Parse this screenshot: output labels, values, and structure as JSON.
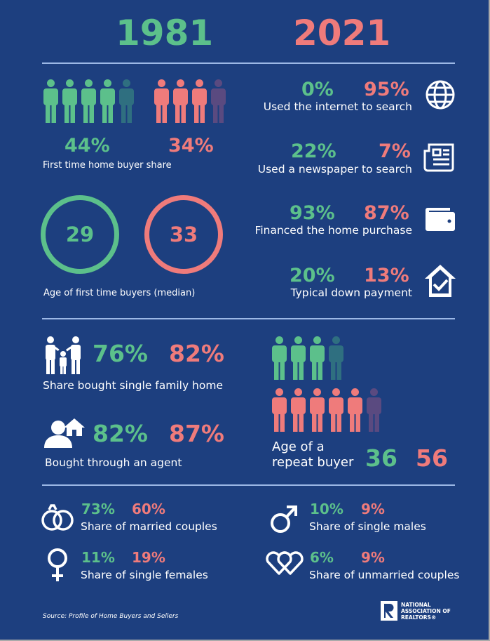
{
  "years": {
    "left": "1981",
    "right": "2021"
  },
  "colors": {
    "background": "#1d3f7f",
    "year_1981": "#5cc08b",
    "year_2021": "#ef7b7b",
    "dim_1981": "#2f6f80",
    "dim_2021": "#5a4a80"
  },
  "first_time_share": {
    "v1981": "44%",
    "v2021": "34%",
    "label": "First time home buyer share",
    "icons_1981": {
      "filled": 4,
      "total": 5
    },
    "icons_2021": {
      "filled": 3,
      "total": 4
    }
  },
  "first_time_age": {
    "v1981": "29",
    "v2021": "33",
    "label": "Age of first time buyers (median)"
  },
  "internet": {
    "v1981": "0%",
    "v2021": "95%",
    "label": "Used the internet to search",
    "icon": "globe-icon"
  },
  "newspaper": {
    "v1981": "22%",
    "v2021": "7%",
    "label": "Used a newspaper to search",
    "icon": "newspaper-icon"
  },
  "financed": {
    "v1981": "93%",
    "v2021": "87%",
    "label": "Financed the home purchase",
    "icon": "wallet-icon"
  },
  "down_payment": {
    "v1981": "20%",
    "v2021": "13%",
    "label": "Typical down payment",
    "icon": "house-check-icon"
  },
  "single_family": {
    "v1981": "76%",
    "v2021": "82%",
    "label": "Share bought single family home",
    "icon": "family-icon"
  },
  "agent": {
    "v1981": "82%",
    "v2021": "87%",
    "label": "Bought through an agent",
    "icon": "agent-house-icon"
  },
  "repeat_age": {
    "v1981": "36",
    "v2021": "56",
    "label_line1": "Age of a",
    "label_line2": "repeat buyer",
    "icons_1981": {
      "filled": 3,
      "total": 4
    },
    "icons_2021": {
      "filled": 5,
      "total": 6
    }
  },
  "married": {
    "v1981": "73%",
    "v2021": "60%",
    "label": "Share of married couples",
    "icon": "rings-icon"
  },
  "single_males": {
    "v1981": "10%",
    "v2021": "9%",
    "label": "Share of single males",
    "icon": "male-symbol-icon"
  },
  "single_females": {
    "v1981": "11%",
    "v2021": "19%",
    "label": "Share of single females",
    "icon": "female-symbol-icon"
  },
  "unmarried": {
    "v1981": "6%",
    "v2021": "9%",
    "label": "Share of unmarried couples",
    "icon": "hearts-icon"
  },
  "source": "Source: Profile of Home Buyers and Sellers",
  "logo": {
    "text_lines": [
      "NATIONAL",
      "ASSOCIATION OF",
      "REALTORS®"
    ]
  }
}
